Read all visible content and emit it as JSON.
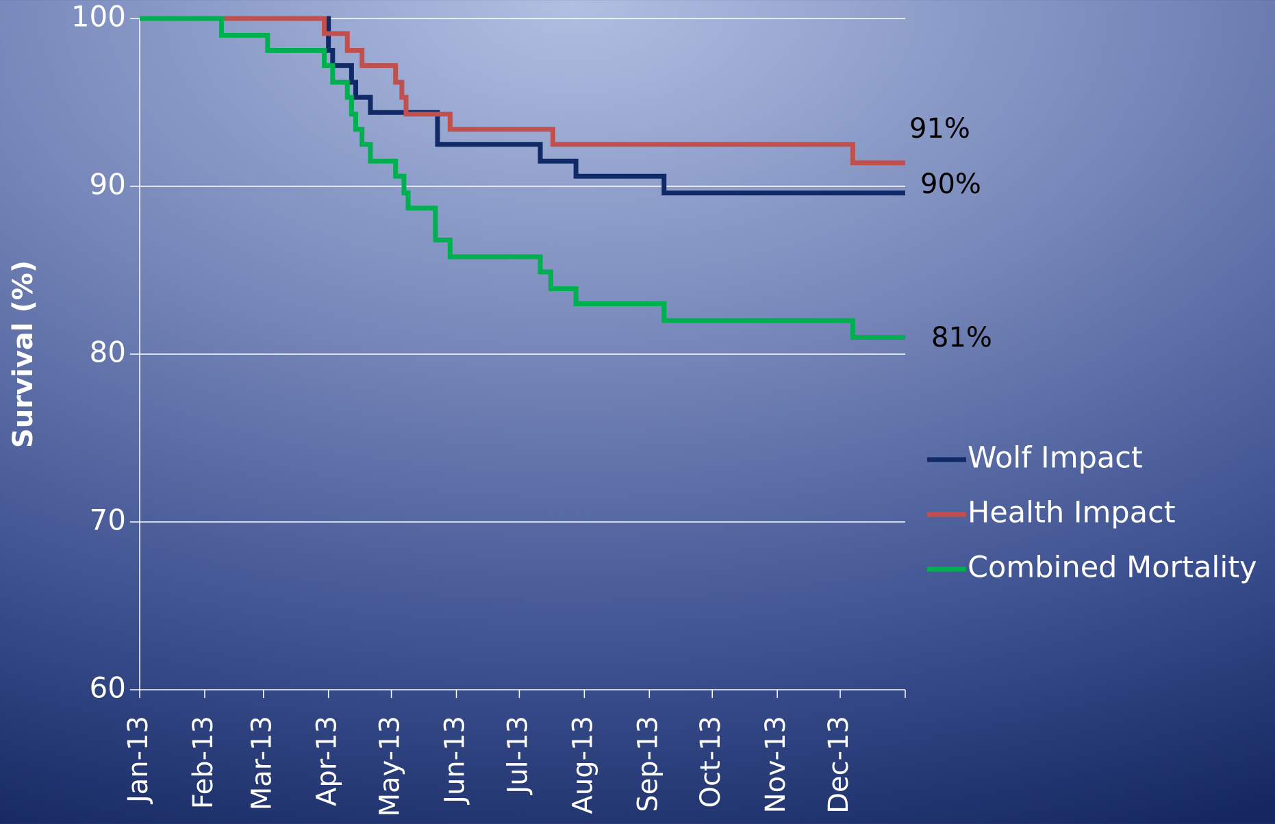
{
  "chart_data": {
    "type": "step",
    "y_label": "Survival (%)",
    "xlim": [
      0,
      365
    ],
    "xticks": [
      {
        "value": 0,
        "label": "Jan-13"
      },
      {
        "value": 31,
        "label": "Feb-13"
      },
      {
        "value": 59,
        "label": "Mar-13"
      },
      {
        "value": 90,
        "label": "Apr-13"
      },
      {
        "value": 120,
        "label": "May-13"
      },
      {
        "value": 151,
        "label": "Jun-13"
      },
      {
        "value": 181,
        "label": "Jul-13"
      },
      {
        "value": 212,
        "label": "Aug-13"
      },
      {
        "value": 243,
        "label": "Sep-13"
      },
      {
        "value": 273,
        "label": "Oct-13"
      },
      {
        "value": 304,
        "label": "Nov-13"
      },
      {
        "value": 334,
        "label": "Dec-13"
      },
      {
        "value": 365,
        "label": null
      }
    ],
    "ylim": [
      60,
      100
    ],
    "yticks": [
      60,
      70,
      80,
      90,
      100
    ],
    "grid": true,
    "legend": "right",
    "series": [
      {
        "name": "Wolf Impact",
        "color": "#0f2a66",
        "end_label": "90%",
        "x": [
          0,
          90,
          92,
          101,
          103,
          110,
          142,
          191,
          208,
          250,
          365
        ],
        "values": [
          100,
          98.1,
          97.2,
          96.2,
          95.3,
          94.4,
          92.5,
          91.5,
          90.6,
          89.6,
          89.6
        ]
      },
      {
        "name": "Health Impact",
        "color": "#c0504d",
        "end_label": "91%",
        "x": [
          0,
          88,
          99,
          106,
          122,
          125,
          127,
          148,
          197,
          340,
          365
        ],
        "values": [
          100,
          99.1,
          98.1,
          97.2,
          96.2,
          95.3,
          94.3,
          93.4,
          92.5,
          91.4,
          91.4
        ]
      },
      {
        "name": "Combined Mortality",
        "color": "#00b050",
        "end_label": "81%",
        "x": [
          0,
          39,
          61,
          88,
          92,
          99,
          101,
          103,
          106,
          110,
          122,
          126,
          128,
          141,
          148,
          191,
          196,
          208,
          250,
          340,
          365
        ],
        "values": [
          100,
          99,
          98.1,
          97.2,
          96.2,
          95.3,
          94.3,
          93.4,
          92.5,
          91.5,
          90.6,
          89.6,
          88.7,
          86.8,
          85.8,
          84.9,
          83.9,
          83.0,
          82.0,
          81.0,
          81.0
        ]
      }
    ]
  }
}
